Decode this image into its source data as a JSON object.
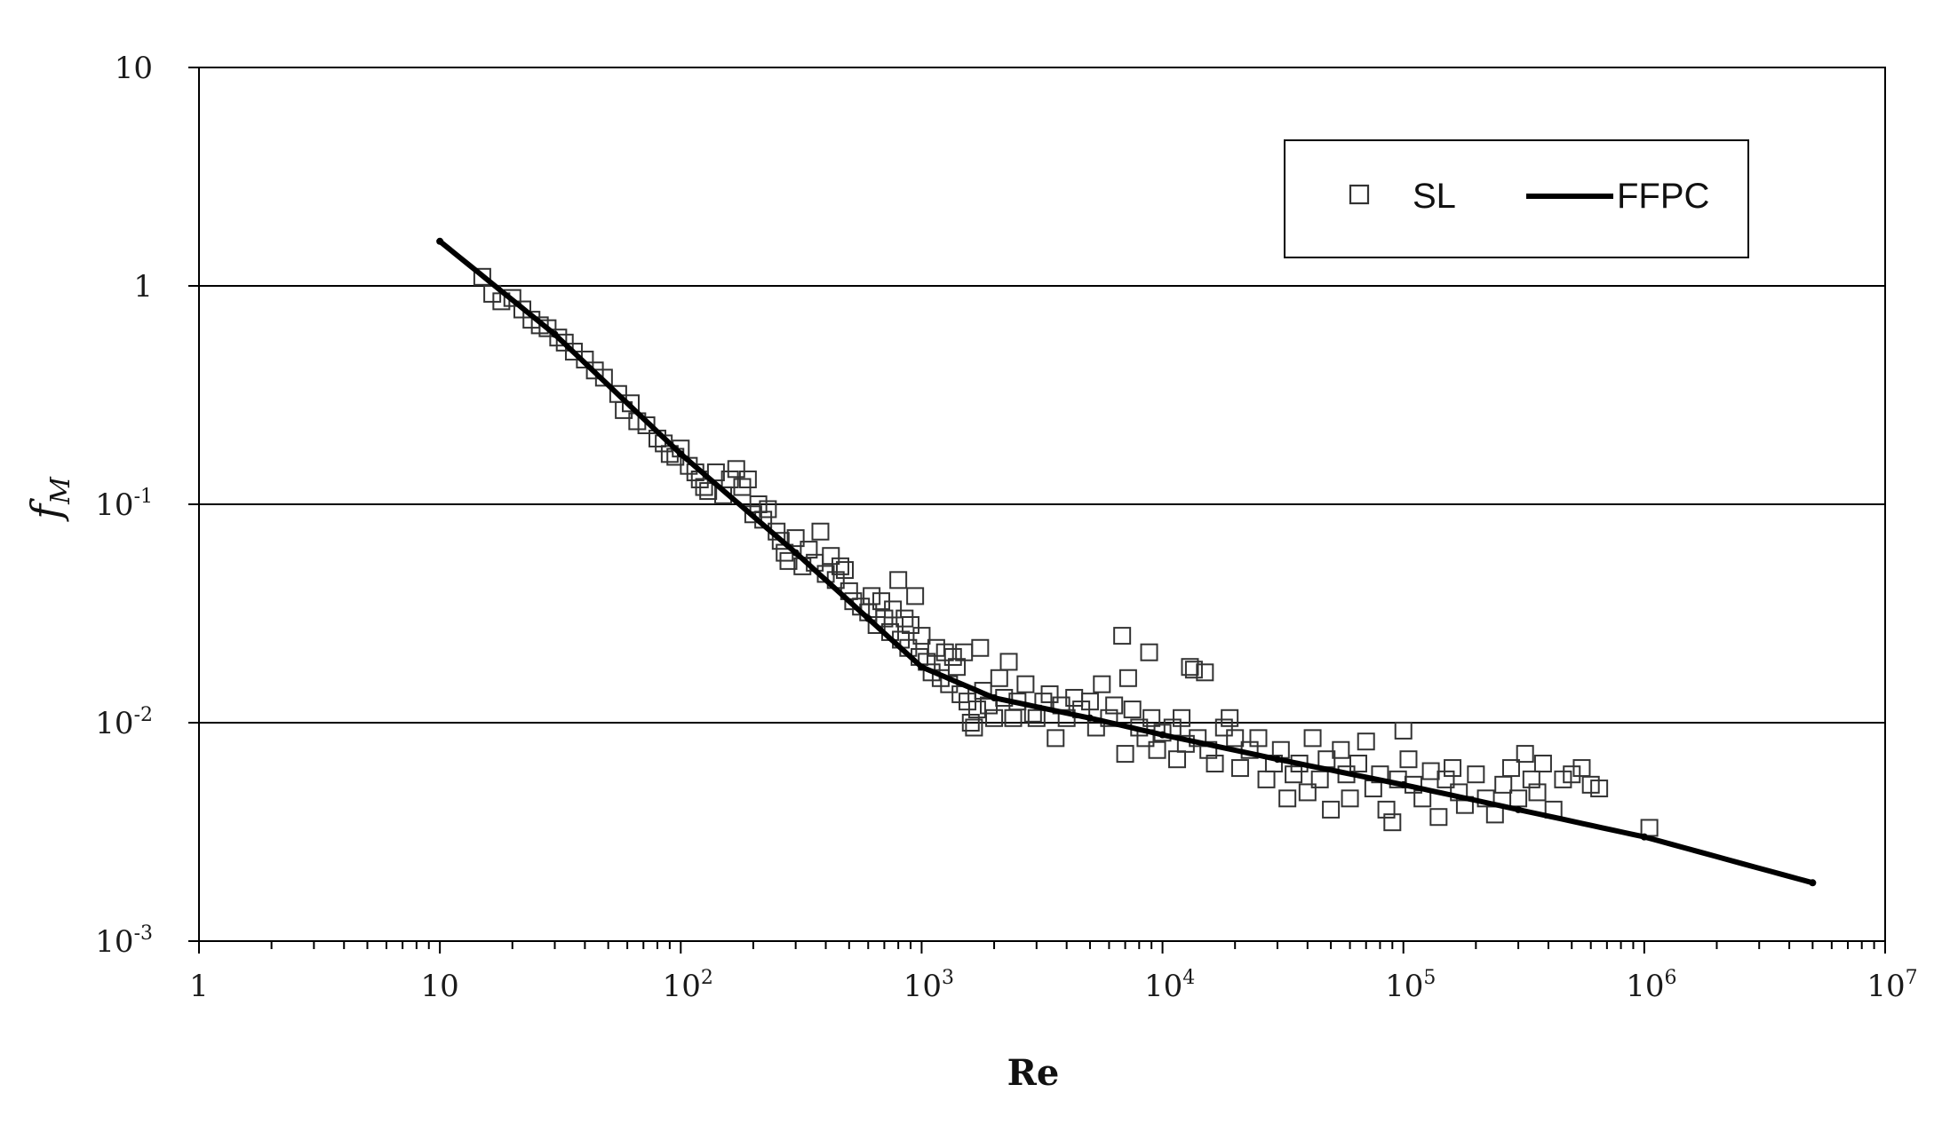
{
  "chart_data": {
    "type": "scatter",
    "xlabel": "Re",
    "ylabel": "f_M",
    "x_scale": "log",
    "y_scale": "log",
    "xlim": [
      1,
      10000000
    ],
    "ylim": [
      0.001,
      10
    ],
    "x_ticks": [
      {
        "base": "1",
        "exp": ""
      },
      {
        "base": "10",
        "exp": ""
      },
      {
        "base": "10",
        "exp": "2"
      },
      {
        "base": "10",
        "exp": "3"
      },
      {
        "base": "10",
        "exp": "4"
      },
      {
        "base": "10",
        "exp": "5"
      },
      {
        "base": "10",
        "exp": "6"
      },
      {
        "base": "10",
        "exp": "7"
      }
    ],
    "y_ticks": [
      {
        "base": "10",
        "exp": "-3"
      },
      {
        "base": "10",
        "exp": "-2"
      },
      {
        "base": "10",
        "exp": "-1"
      },
      {
        "base": "1",
        "exp": ""
      },
      {
        "base": "10",
        "exp": ""
      }
    ],
    "grid": "horizontal",
    "legend_position": "top-right",
    "series": [
      {
        "name": "SL",
        "kind": "markers",
        "marker": "open-square",
        "color": "#333333",
        "points": [
          [
            15,
            1.1
          ],
          [
            16.5,
            0.92
          ],
          [
            18,
            0.85
          ],
          [
            20,
            0.88
          ],
          [
            22,
            0.78
          ],
          [
            24,
            0.7
          ],
          [
            26,
            0.66
          ],
          [
            28,
            0.64
          ],
          [
            31,
            0.58
          ],
          [
            33,
            0.55
          ],
          [
            36,
            0.5
          ],
          [
            40,
            0.46
          ],
          [
            44,
            0.41
          ],
          [
            48,
            0.38
          ],
          [
            55,
            0.32
          ],
          [
            58,
            0.27
          ],
          [
            62,
            0.29
          ],
          [
            66,
            0.24
          ],
          [
            72,
            0.23
          ],
          [
            80,
            0.2
          ],
          [
            85,
            0.19
          ],
          [
            90,
            0.17
          ],
          [
            95,
            0.165
          ],
          [
            100,
            0.18
          ],
          [
            108,
            0.15
          ],
          [
            115,
            0.14
          ],
          [
            120,
            0.13
          ],
          [
            125,
            0.12
          ],
          [
            130,
            0.115
          ],
          [
            140,
            0.14
          ],
          [
            150,
            0.11
          ],
          [
            160,
            0.13
          ],
          [
            170,
            0.145
          ],
          [
            180,
            0.12
          ],
          [
            190,
            0.13
          ],
          [
            200,
            0.09
          ],
          [
            210,
            0.1
          ],
          [
            220,
            0.085
          ],
          [
            230,
            0.095
          ],
          [
            250,
            0.075
          ],
          [
            260,
            0.068
          ],
          [
            270,
            0.06
          ],
          [
            280,
            0.055
          ],
          [
            300,
            0.07
          ],
          [
            320,
            0.052
          ],
          [
            340,
            0.062
          ],
          [
            360,
            0.054
          ],
          [
            380,
            0.075
          ],
          [
            400,
            0.048
          ],
          [
            420,
            0.058
          ],
          [
            440,
            0.045
          ],
          [
            460,
            0.052
          ],
          [
            480,
            0.05
          ],
          [
            500,
            0.04
          ],
          [
            520,
            0.036
          ],
          [
            560,
            0.034
          ],
          [
            600,
            0.032
          ],
          [
            620,
            0.038
          ],
          [
            650,
            0.028
          ],
          [
            680,
            0.036
          ],
          [
            700,
            0.03
          ],
          [
            740,
            0.026
          ],
          [
            760,
            0.033
          ],
          [
            800,
            0.045
          ],
          [
            820,
            0.024
          ],
          [
            850,
            0.03
          ],
          [
            880,
            0.022
          ],
          [
            900,
            0.028
          ],
          [
            940,
            0.038
          ],
          [
            980,
            0.02
          ],
          [
            1000,
            0.025
          ],
          [
            1050,
            0.019
          ],
          [
            1100,
            0.017
          ],
          [
            1150,
            0.022
          ],
          [
            1200,
            0.016
          ],
          [
            1250,
            0.021
          ],
          [
            1300,
            0.015
          ],
          [
            1350,
            0.02
          ],
          [
            1400,
            0.018
          ],
          [
            1450,
            0.0135
          ],
          [
            1500,
            0.021
          ],
          [
            1550,
            0.0125
          ],
          [
            1600,
            0.01
          ],
          [
            1650,
            0.0095
          ],
          [
            1700,
            0.0115
          ],
          [
            1750,
            0.022
          ],
          [
            1800,
            0.014
          ],
          [
            1900,
            0.012
          ],
          [
            2000,
            0.0105
          ],
          [
            2100,
            0.016
          ],
          [
            2200,
            0.013
          ],
          [
            2300,
            0.019
          ],
          [
            2400,
            0.0105
          ],
          [
            2500,
            0.0125
          ],
          [
            2700,
            0.015
          ],
          [
            2900,
            0.011
          ],
          [
            3000,
            0.0105
          ],
          [
            3200,
            0.0125
          ],
          [
            3400,
            0.0135
          ],
          [
            3600,
            0.0085
          ],
          [
            3800,
            0.012
          ],
          [
            4000,
            0.0105
          ],
          [
            4300,
            0.013
          ],
          [
            4600,
            0.0115
          ],
          [
            5000,
            0.0125
          ],
          [
            5300,
            0.0095
          ],
          [
            5600,
            0.015
          ],
          [
            6000,
            0.0105
          ],
          [
            6300,
            0.012
          ],
          [
            6800,
            0.025
          ],
          [
            7000,
            0.0072
          ],
          [
            7200,
            0.016
          ],
          [
            7500,
            0.0115
          ],
          [
            8000,
            0.0095
          ],
          [
            8500,
            0.0085
          ],
          [
            8800,
            0.021
          ],
          [
            9000,
            0.0105
          ],
          [
            9500,
            0.0075
          ],
          [
            10000,
            0.009
          ],
          [
            11000,
            0.0095
          ],
          [
            11500,
            0.0068
          ],
          [
            12000,
            0.0105
          ],
          [
            12500,
            0.008
          ],
          [
            13000,
            0.018
          ],
          [
            13500,
            0.0175
          ],
          [
            14000,
            0.0085
          ],
          [
            15000,
            0.017
          ],
          [
            15500,
            0.0075
          ],
          [
            16500,
            0.0065
          ],
          [
            18000,
            0.0095
          ],
          [
            19000,
            0.0105
          ],
          [
            20000,
            0.0085
          ],
          [
            21000,
            0.0062
          ],
          [
            23000,
            0.0075
          ],
          [
            25000,
            0.0085
          ],
          [
            27000,
            0.0055
          ],
          [
            29000,
            0.0065
          ],
          [
            31000,
            0.0075
          ],
          [
            33000,
            0.0045
          ],
          [
            35000,
            0.0058
          ],
          [
            37000,
            0.0065
          ],
          [
            40000,
            0.0048
          ],
          [
            42000,
            0.0085
          ],
          [
            45000,
            0.0055
          ],
          [
            48000,
            0.0068
          ],
          [
            50000,
            0.004
          ],
          [
            55000,
            0.0075
          ],
          [
            58000,
            0.0058
          ],
          [
            60000,
            0.0045
          ],
          [
            65000,
            0.0065
          ],
          [
            70000,
            0.0082
          ],
          [
            75000,
            0.005
          ],
          [
            80000,
            0.0058
          ],
          [
            85000,
            0.004
          ],
          [
            90000,
            0.0035
          ],
          [
            95000,
            0.0055
          ],
          [
            100000,
            0.0092
          ],
          [
            105000,
            0.0068
          ],
          [
            110000,
            0.0052
          ],
          [
            120000,
            0.0045
          ],
          [
            130000,
            0.006
          ],
          [
            140000,
            0.0037
          ],
          [
            150000,
            0.0055
          ],
          [
            160000,
            0.0062
          ],
          [
            170000,
            0.0048
          ],
          [
            180000,
            0.0042
          ],
          [
            200000,
            0.0058
          ],
          [
            220000,
            0.0045
          ],
          [
            240000,
            0.0038
          ],
          [
            260000,
            0.0052
          ],
          [
            280000,
            0.0062
          ],
          [
            300000,
            0.0045
          ],
          [
            320000,
            0.0072
          ],
          [
            340000,
            0.0055
          ],
          [
            360000,
            0.0048
          ],
          [
            380000,
            0.0065
          ],
          [
            420000,
            0.004
          ],
          [
            460000,
            0.0055
          ],
          [
            500000,
            0.0058
          ],
          [
            550000,
            0.0062
          ],
          [
            600000,
            0.0052
          ],
          [
            650000,
            0.005
          ],
          [
            1050000,
            0.0033
          ]
        ]
      },
      {
        "name": "FFPC",
        "kind": "line",
        "color": "#000000",
        "points": [
          [
            10,
            1.6
          ],
          [
            30,
            0.6
          ],
          [
            100,
            0.17
          ],
          [
            300,
            0.06
          ],
          [
            600,
            0.03
          ],
          [
            1000,
            0.018
          ],
          [
            2000,
            0.013
          ],
          [
            5000,
            0.0105
          ],
          [
            10000,
            0.0088
          ],
          [
            30000,
            0.0068
          ],
          [
            100000,
            0.0052
          ],
          [
            300000,
            0.004
          ],
          [
            1000000,
            0.003
          ],
          [
            5000000,
            0.00185
          ]
        ]
      }
    ]
  }
}
